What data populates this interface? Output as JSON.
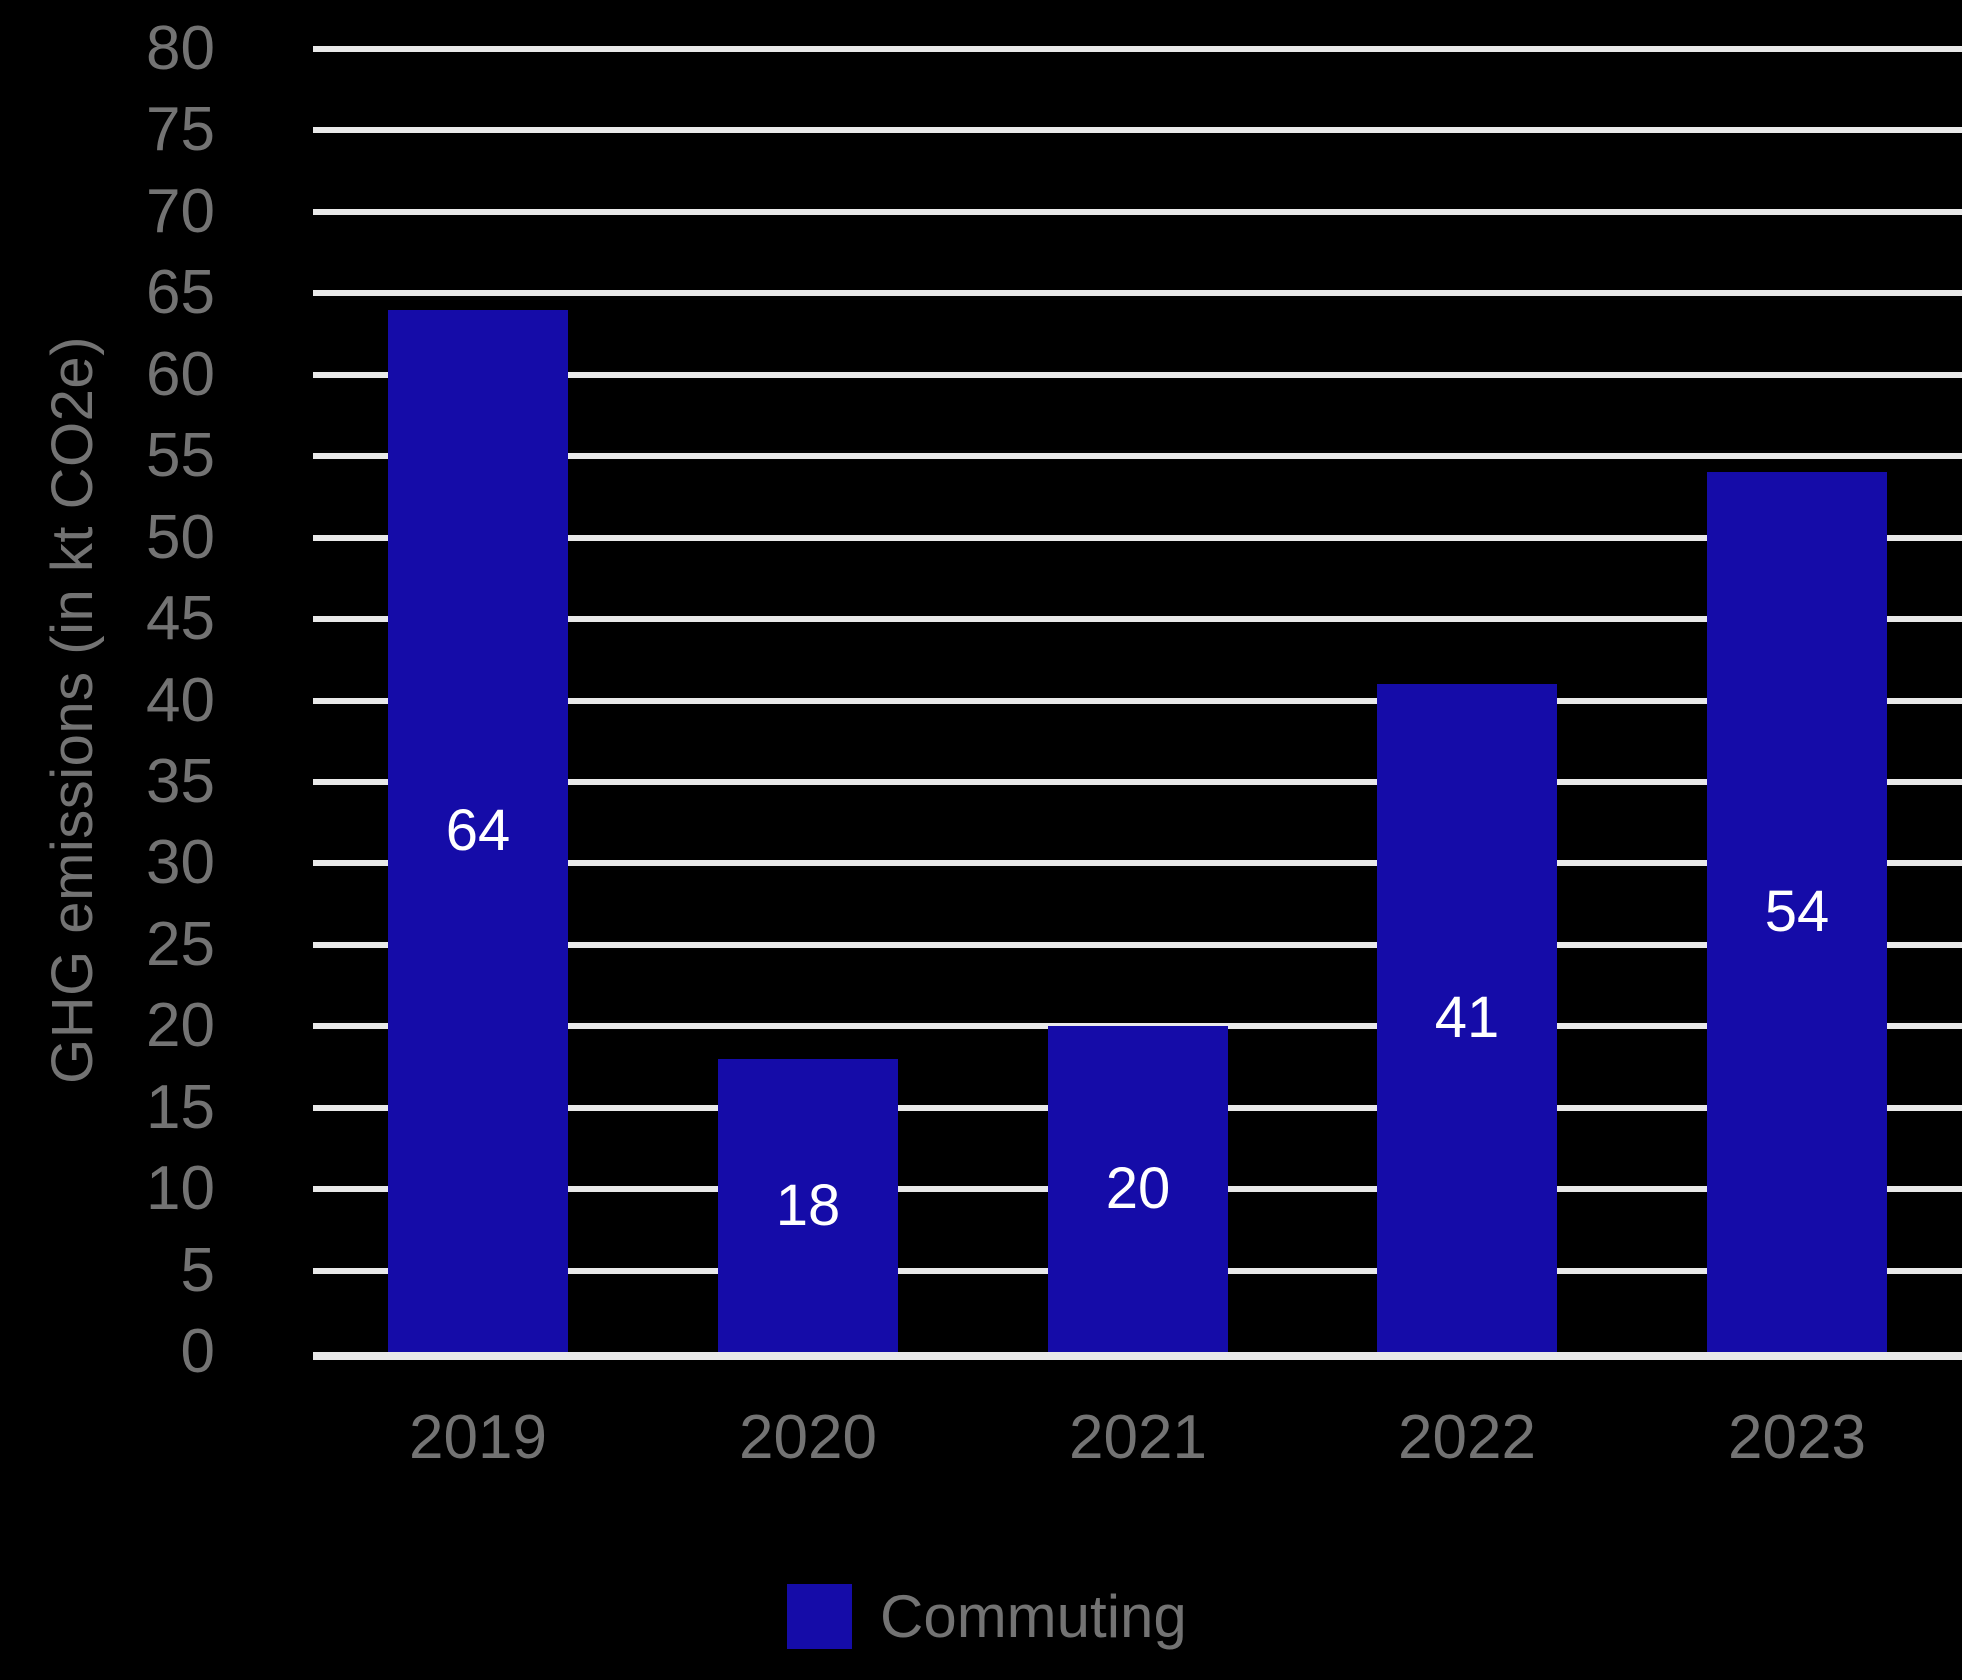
{
  "chart_data": {
    "type": "bar",
    "categories": [
      "2019",
      "2020",
      "2021",
      "2022",
      "2023"
    ],
    "series": [
      {
        "name": "Commuting",
        "values": [
          64,
          18,
          20,
          41,
          54
        ]
      }
    ],
    "bar_value_labels": [
      "64",
      "18",
      "20",
      "41",
      "54"
    ],
    "title": "",
    "xlabel": "",
    "ylabel": "GHG emissions (in kt CO2e)",
    "ylim": [
      0,
      80
    ],
    "ytick_step": 5,
    "ytick_labels": [
      "0",
      "5",
      "10",
      "15",
      "20",
      "25",
      "30",
      "35",
      "40",
      "45",
      "50",
      "55",
      "60",
      "65",
      "70",
      "75",
      "80"
    ],
    "grid": true,
    "legend_position": "bottom"
  },
  "legend": {
    "label": "Commuting"
  },
  "colors": {
    "background": "#000000",
    "bar": "#150CA8",
    "gridline": "#e9e9e9",
    "axis_text": "#737373",
    "bar_value_text": "#ffffff"
  }
}
